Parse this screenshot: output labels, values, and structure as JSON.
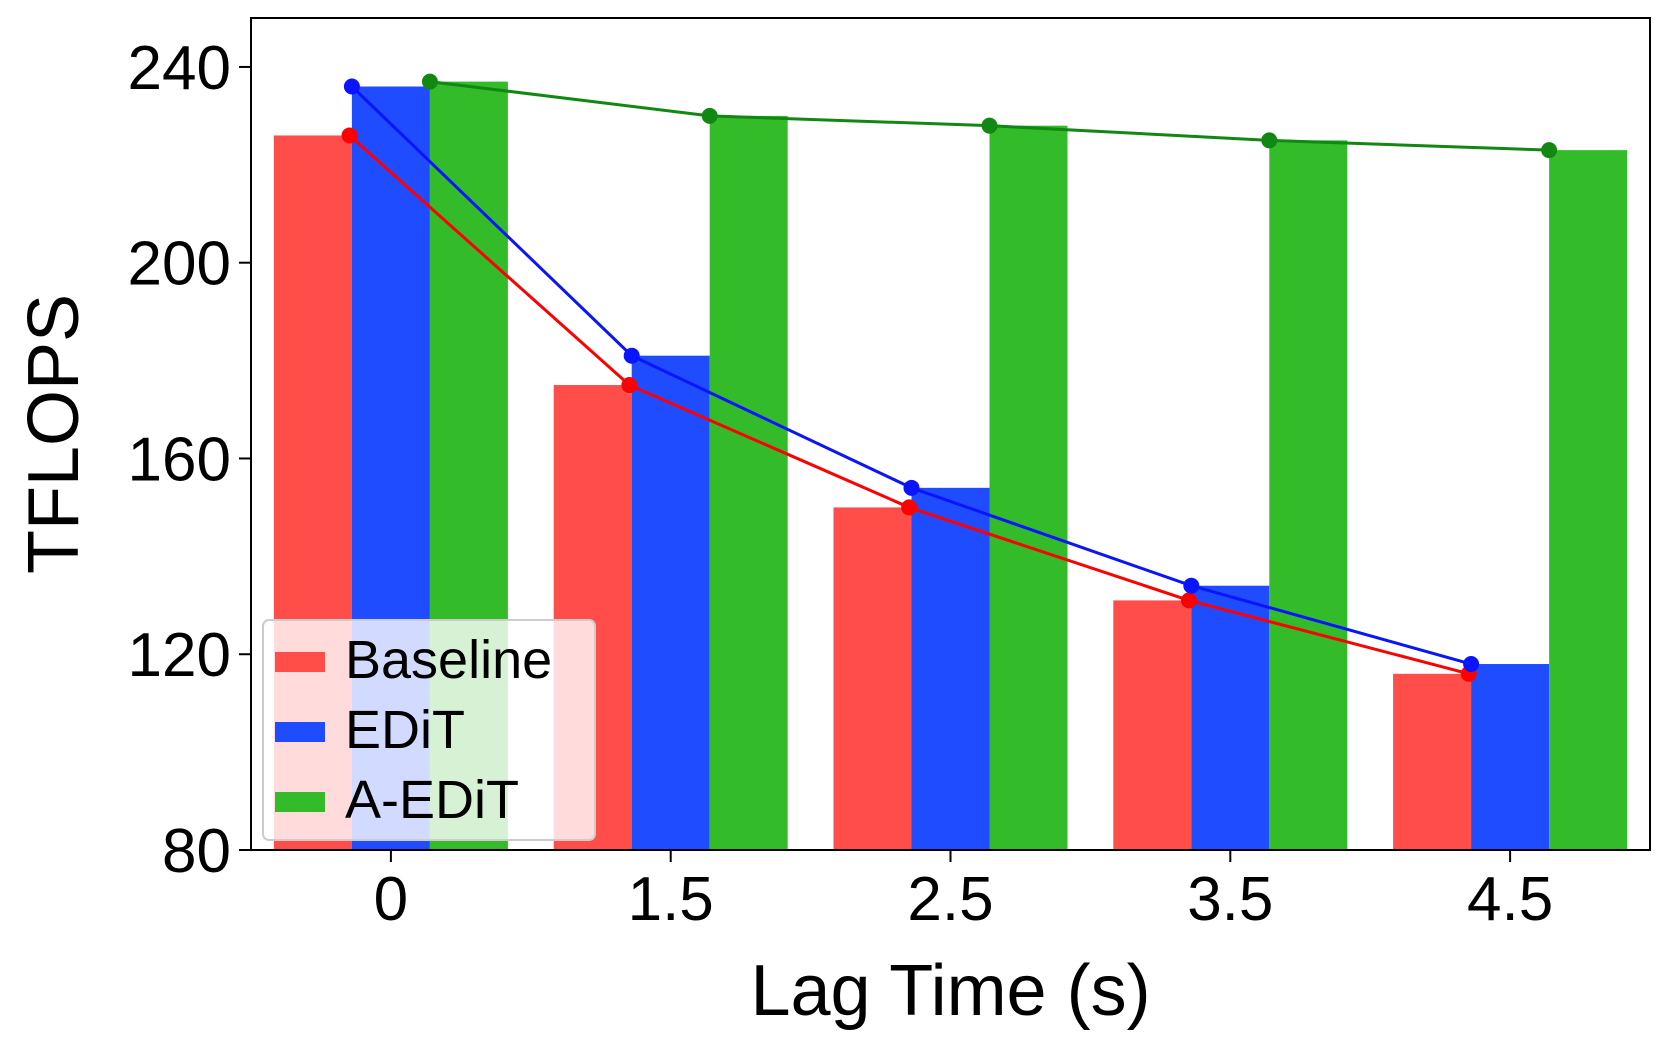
{
  "chart_data": {
    "type": "bar",
    "xlabel": "Lag Time (s)",
    "ylabel": "TFLOPS",
    "categories": [
      "0",
      "1.5",
      "2.5",
      "3.5",
      "4.5"
    ],
    "ylim": [
      80,
      250
    ],
    "yticks": [
      80,
      120,
      160,
      200,
      240
    ],
    "grid": false,
    "legend_position": "lower-left",
    "series": [
      {
        "name": "Baseline",
        "bar_color": "#ff4e4a",
        "line_color": "#ff0000",
        "values": [
          226,
          175,
          150,
          131,
          116
        ]
      },
      {
        "name": "EDiT",
        "bar_color": "#1f4cff",
        "line_color": "#0a14ff",
        "values": [
          236,
          181,
          154,
          134,
          118
        ]
      },
      {
        "name": "A-EDiT",
        "bar_color": "#33bb2a",
        "line_color": "#118811",
        "values": [
          237,
          230,
          228,
          225,
          223
        ]
      }
    ]
  }
}
